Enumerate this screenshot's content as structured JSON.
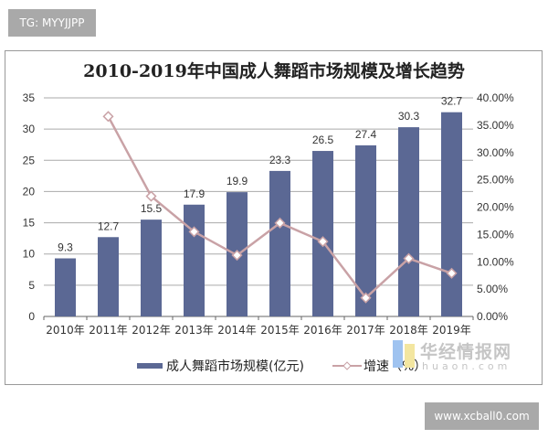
{
  "watermarks": {
    "top": "TG: MYYJJPP",
    "bottom": "www.xcball0.com",
    "logo_cn": "华经情报网",
    "logo_en": "huaon.com"
  },
  "chart_data": {
    "type": "bar+line",
    "title": "2010-2019年中国成人舞蹈市场规模及增长趋势",
    "categories": [
      "2010年",
      "2011年",
      "2012年",
      "2013年",
      "2014年",
      "2015年",
      "2016年",
      "2017年",
      "2018年",
      "2019年"
    ],
    "series": [
      {
        "name": "成人舞蹈市场规模(亿元)",
        "type": "bar",
        "axis": "left",
        "color": "#5b6894",
        "values": [
          9.3,
          12.7,
          15.5,
          17.9,
          19.9,
          23.3,
          26.5,
          27.4,
          30.3,
          32.7
        ],
        "labels": [
          "9.3",
          "12.7",
          "15.5",
          "17.9",
          "19.9",
          "23.3",
          "26.5",
          "27.4",
          "30.3",
          "32.7"
        ]
      },
      {
        "name": "增速（%）",
        "type": "line",
        "axis": "right",
        "color": "#c9a2a6",
        "values": [
          null,
          36.6,
          22.0,
          15.5,
          11.2,
          17.1,
          13.7,
          3.4,
          10.6,
          7.9
        ]
      }
    ],
    "left_axis": {
      "ylim": [
        0,
        35
      ],
      "ticks": [
        "0",
        "5",
        "10",
        "15",
        "20",
        "25",
        "30",
        "35"
      ]
    },
    "right_axis": {
      "ylim": [
        0,
        40
      ],
      "ticks": [
        "0.00%",
        "5.00%",
        "10.00%",
        "15.00%",
        "20.00%",
        "25.00%",
        "30.00%",
        "35.00%",
        "40.00%"
      ]
    },
    "grid": true,
    "legend": "bottom"
  }
}
